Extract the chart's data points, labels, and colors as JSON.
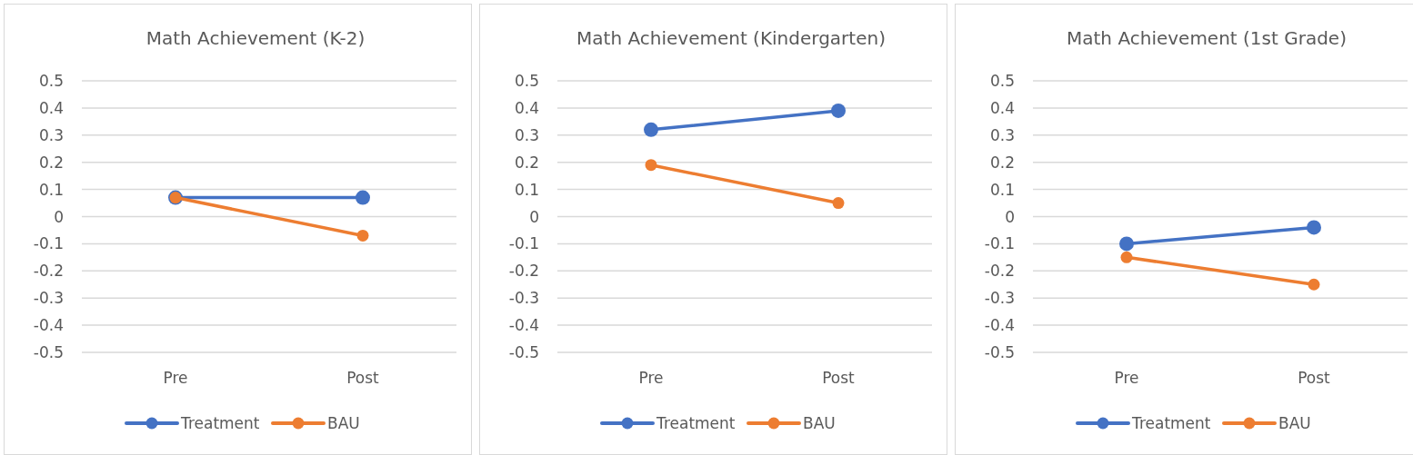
{
  "chart_data": [
    {
      "type": "line",
      "title": "Math Achievement (K-2)",
      "categories": [
        "Pre",
        "Post"
      ],
      "ylim": [
        -0.5,
        0.5
      ],
      "yticks": [
        0.5,
        0.4,
        0.3,
        0.2,
        0.1,
        0,
        -0.1,
        -0.2,
        -0.3,
        -0.4,
        -0.5
      ],
      "grid": "y",
      "legend": "bottom",
      "marker": "circle",
      "series": [
        {
          "name": "Treatment",
          "color": "#4472c4",
          "values": [
            0.07,
            0.07
          ]
        },
        {
          "name": "BAU",
          "color": "#ed7d31",
          "values": [
            0.07,
            -0.07
          ]
        }
      ]
    },
    {
      "type": "line",
      "title": "Math Achievement (Kindergarten)",
      "categories": [
        "Pre",
        "Post"
      ],
      "ylim": [
        -0.5,
        0.5
      ],
      "yticks": [
        0.5,
        0.4,
        0.3,
        0.2,
        0.1,
        0,
        -0.1,
        -0.2,
        -0.3,
        -0.4,
        -0.5
      ],
      "grid": "y",
      "legend": "bottom",
      "marker": "circle",
      "series": [
        {
          "name": "Treatment",
          "color": "#4472c4",
          "values": [
            0.32,
            0.39
          ]
        },
        {
          "name": "BAU",
          "color": "#ed7d31",
          "values": [
            0.19,
            0.05
          ]
        }
      ]
    },
    {
      "type": "line",
      "title": "Math Achievement (1st Grade)",
      "categories": [
        "Pre",
        "Post"
      ],
      "ylim": [
        -0.5,
        0.5
      ],
      "yticks": [
        0.5,
        0.4,
        0.3,
        0.2,
        0.1,
        0,
        -0.1,
        -0.2,
        -0.3,
        -0.4,
        -0.5
      ],
      "grid": "y",
      "legend": "bottom",
      "marker": "circle",
      "series": [
        {
          "name": "Treatment",
          "color": "#4472c4",
          "values": [
            -0.1,
            -0.04
          ]
        },
        {
          "name": "BAU",
          "color": "#ed7d31",
          "values": [
            -0.15,
            -0.25
          ]
        }
      ]
    }
  ]
}
